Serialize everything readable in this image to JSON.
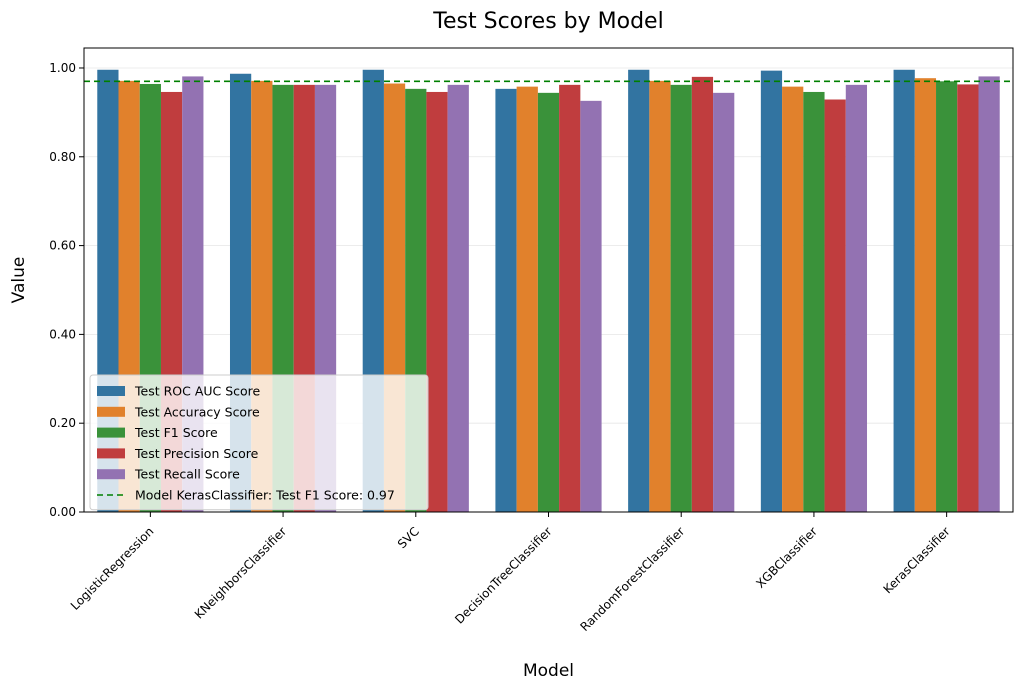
{
  "chart_data": {
    "type": "bar",
    "title": "Test Scores by Model",
    "xlabel": "Model",
    "ylabel": "Value",
    "ylim": [
      0,
      1.045
    ],
    "yticks": [
      0.0,
      0.2,
      0.4,
      0.6,
      0.8,
      1.0
    ],
    "ytick_labels": [
      "0.00",
      "0.20",
      "0.40",
      "0.60",
      "0.80",
      "1.00"
    ],
    "grid": "horizontal",
    "legend_position": "lower-left",
    "categories": [
      "LogisticRegression",
      "KNeighborsClassifier",
      "SVC",
      "DecisionTreeClassifier",
      "RandomForestClassifier",
      "XGBClassifier",
      "KerasClassifier"
    ],
    "series": [
      {
        "name": "Test ROC AUC Score",
        "color": "#3274a1",
        "values": [
          0.996,
          0.987,
          0.996,
          0.953,
          0.996,
          0.994,
          0.996
        ]
      },
      {
        "name": "Test Accuracy Score",
        "color": "#e1812c",
        "values": [
          0.971,
          0.971,
          0.965,
          0.958,
          0.971,
          0.958,
          0.977
        ]
      },
      {
        "name": "Test F1 Score",
        "color": "#3a923a",
        "values": [
          0.964,
          0.962,
          0.953,
          0.944,
          0.962,
          0.946,
          0.97
        ]
      },
      {
        "name": "Test Precision Score",
        "color": "#c03d3e",
        "values": [
          0.946,
          0.962,
          0.946,
          0.962,
          0.98,
          0.929,
          0.963
        ]
      },
      {
        "name": "Test Recall Score",
        "color": "#9372b2",
        "values": [
          0.981,
          0.962,
          0.962,
          0.926,
          0.944,
          0.962,
          0.981
        ]
      }
    ],
    "reference_line": {
      "label": "Model KerasClassifier: Test F1 Score: 0.97",
      "value": 0.97,
      "color": "#008000",
      "style": "dashed"
    }
  }
}
